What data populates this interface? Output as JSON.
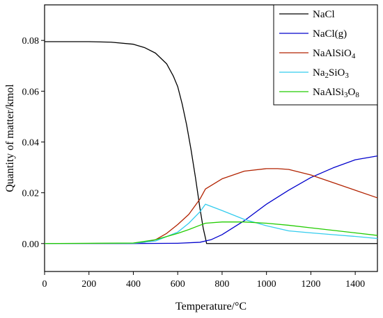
{
  "chart_data": {
    "type": "line",
    "title": "",
    "xlabel": "Temperature/°C",
    "ylabel": "Quantity of matter/kmol",
    "xlim": [
      0,
      1500
    ],
    "ylim": [
      -0.011,
      0.094
    ],
    "xticks": [
      "0",
      "200",
      "400",
      "600",
      "800",
      "1000",
      "1200",
      "1400"
    ],
    "xtick_values": [
      0,
      200,
      400,
      600,
      800,
      1000,
      1200,
      1400
    ],
    "yticks": [
      "0.00",
      "0.02",
      "0.04",
      "0.06",
      "0.08"
    ],
    "ytick_values": [
      0.0,
      0.02,
      0.04,
      0.06,
      0.08
    ],
    "grid": false,
    "legend_position": "top-right",
    "series": [
      {
        "name": "NaCl",
        "color": "#000000",
        "x": [
          0,
          200,
          300,
          400,
          450,
          500,
          550,
          580,
          600,
          620,
          640,
          660,
          680,
          700,
          715,
          728,
          730,
          800,
          1000,
          1200,
          1500
        ],
        "y": [
          0.0795,
          0.0795,
          0.0793,
          0.0785,
          0.0772,
          0.075,
          0.0708,
          0.066,
          0.0618,
          0.055,
          0.0468,
          0.037,
          0.026,
          0.014,
          0.006,
          0.001,
          0.0,
          0.0,
          0.0,
          0.0,
          0.0
        ]
      },
      {
        "name": "NaCl(g)",
        "color": "#0000cc",
        "x": [
          0,
          400,
          600,
          700,
          750,
          800,
          900,
          1000,
          1100,
          1200,
          1300,
          1400,
          1500
        ],
        "y": [
          0.0,
          0.0,
          0.0001,
          0.0005,
          0.0015,
          0.0035,
          0.009,
          0.0155,
          0.021,
          0.026,
          0.0298,
          0.033,
          0.0345
        ]
      },
      {
        "name": "NaAlSiO",
        "sub": "4",
        "color": "#b22200",
        "x": [
          0,
          400,
          450,
          500,
          550,
          600,
          650,
          700,
          725,
          800,
          900,
          1000,
          1050,
          1100,
          1200,
          1300,
          1400,
          1500
        ],
        "y": [
          0.0,
          0.0001,
          0.0005,
          0.0015,
          0.004,
          0.0075,
          0.0115,
          0.0175,
          0.0215,
          0.0255,
          0.0285,
          0.0295,
          0.0295,
          0.0292,
          0.027,
          0.024,
          0.021,
          0.018
        ]
      },
      {
        "name": "Na",
        "parts": [
          {
            "t": "Na",
            "sub": false
          },
          {
            "t": "2",
            "sub": true
          },
          {
            "t": "SiO",
            "sub": false
          },
          {
            "t": "3",
            "sub": true
          }
        ],
        "color": "#33ccee",
        "x": [
          0,
          400,
          500,
          600,
          650,
          700,
          725,
          800,
          900,
          1000,
          1100,
          1200,
          1300,
          1400,
          1500
        ],
        "y": [
          0.0,
          0.0001,
          0.001,
          0.0045,
          0.008,
          0.0125,
          0.0155,
          0.013,
          0.0095,
          0.007,
          0.005,
          0.0042,
          0.0035,
          0.0028,
          0.002
        ]
      },
      {
        "name": "NaAlSi",
        "parts": [
          {
            "t": "NaAlSi",
            "sub": false
          },
          {
            "t": "3",
            "sub": true
          },
          {
            "t": "O",
            "sub": false
          },
          {
            "t": "8",
            "sub": true
          }
        ],
        "color": "#22cc00",
        "x": [
          0,
          400,
          500,
          600,
          650,
          700,
          725,
          800,
          900,
          1000,
          1100,
          1200,
          1300,
          1400,
          1500
        ],
        "y": [
          0.0,
          0.0002,
          0.0015,
          0.004,
          0.0055,
          0.0072,
          0.008,
          0.0085,
          0.0085,
          0.008,
          0.0072,
          0.0062,
          0.0052,
          0.0042,
          0.0032
        ]
      }
    ]
  }
}
